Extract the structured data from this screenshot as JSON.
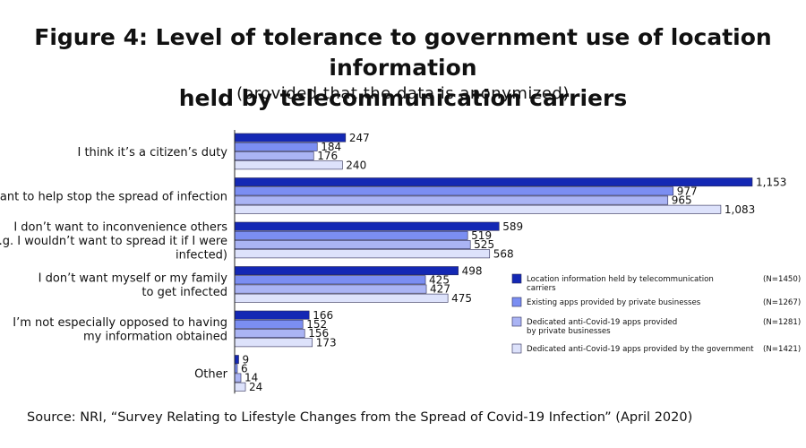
{
  "title": {
    "line1": "Figure 4: Level of tolerance to government use of location information",
    "line2": "held by telecommunication carriers",
    "subtitle": "(provided that the data is anonymized)"
  },
  "source": "Source: NRI, “Survey Relating to Lifestyle Changes from the Spread of Covid-19 Infection” (April 2020)",
  "colors": {
    "series": [
      "#1428b4",
      "#7b8ef2",
      "#aab4f4",
      "#dde2fb"
    ],
    "stroke": "#2a2a55"
  },
  "chart_data": {
    "type": "bar",
    "orientation": "horizontal",
    "categories": [
      [
        "I think it’s a citizen’s duty"
      ],
      [
        "I want to help stop the spread of infection"
      ],
      [
        "I don’t want to inconvenience others",
        "(e.g. I wouldn’t want to spread it if I were",
        "infected)"
      ],
      [
        "I don’t want myself or my family",
        "to get infected"
      ],
      [
        "I’m not especially opposed to having",
        "my information obtained"
      ],
      [
        "Other"
      ]
    ],
    "series": [
      {
        "name": [
          "Location information held by telecommunication",
          "carriers"
        ],
        "n": "(N=1450)",
        "values": [
          247,
          1153,
          589,
          498,
          166,
          9
        ],
        "labels": [
          "247",
          "1,153",
          "589",
          "498",
          "166",
          "9"
        ]
      },
      {
        "name": [
          "Existing apps provided by private businesses"
        ],
        "n": "(N=1267)",
        "values": [
          184,
          977,
          519,
          425,
          152,
          6
        ],
        "labels": [
          "184",
          "977",
          "519",
          "425",
          "152",
          "6"
        ]
      },
      {
        "name": [
          "Dedicated anti-Covid-19 apps provided",
          "by private businesses"
        ],
        "n": "(N=1281)",
        "values": [
          176,
          965,
          525,
          427,
          156,
          14
        ],
        "labels": [
          "176",
          "965",
          "525",
          "427",
          "156",
          "14"
        ]
      },
      {
        "name": [
          "Dedicated anti-Covid-19 apps provided by the government"
        ],
        "n": "(N=1421)",
        "values": [
          240,
          1083,
          568,
          475,
          173,
          24
        ],
        "labels": [
          "240",
          "1,083",
          "568",
          "475",
          "173",
          "24"
        ]
      }
    ],
    "xlim": [
      0,
      1153
    ],
    "legend_position": "bottom-right",
    "grid": false
  }
}
